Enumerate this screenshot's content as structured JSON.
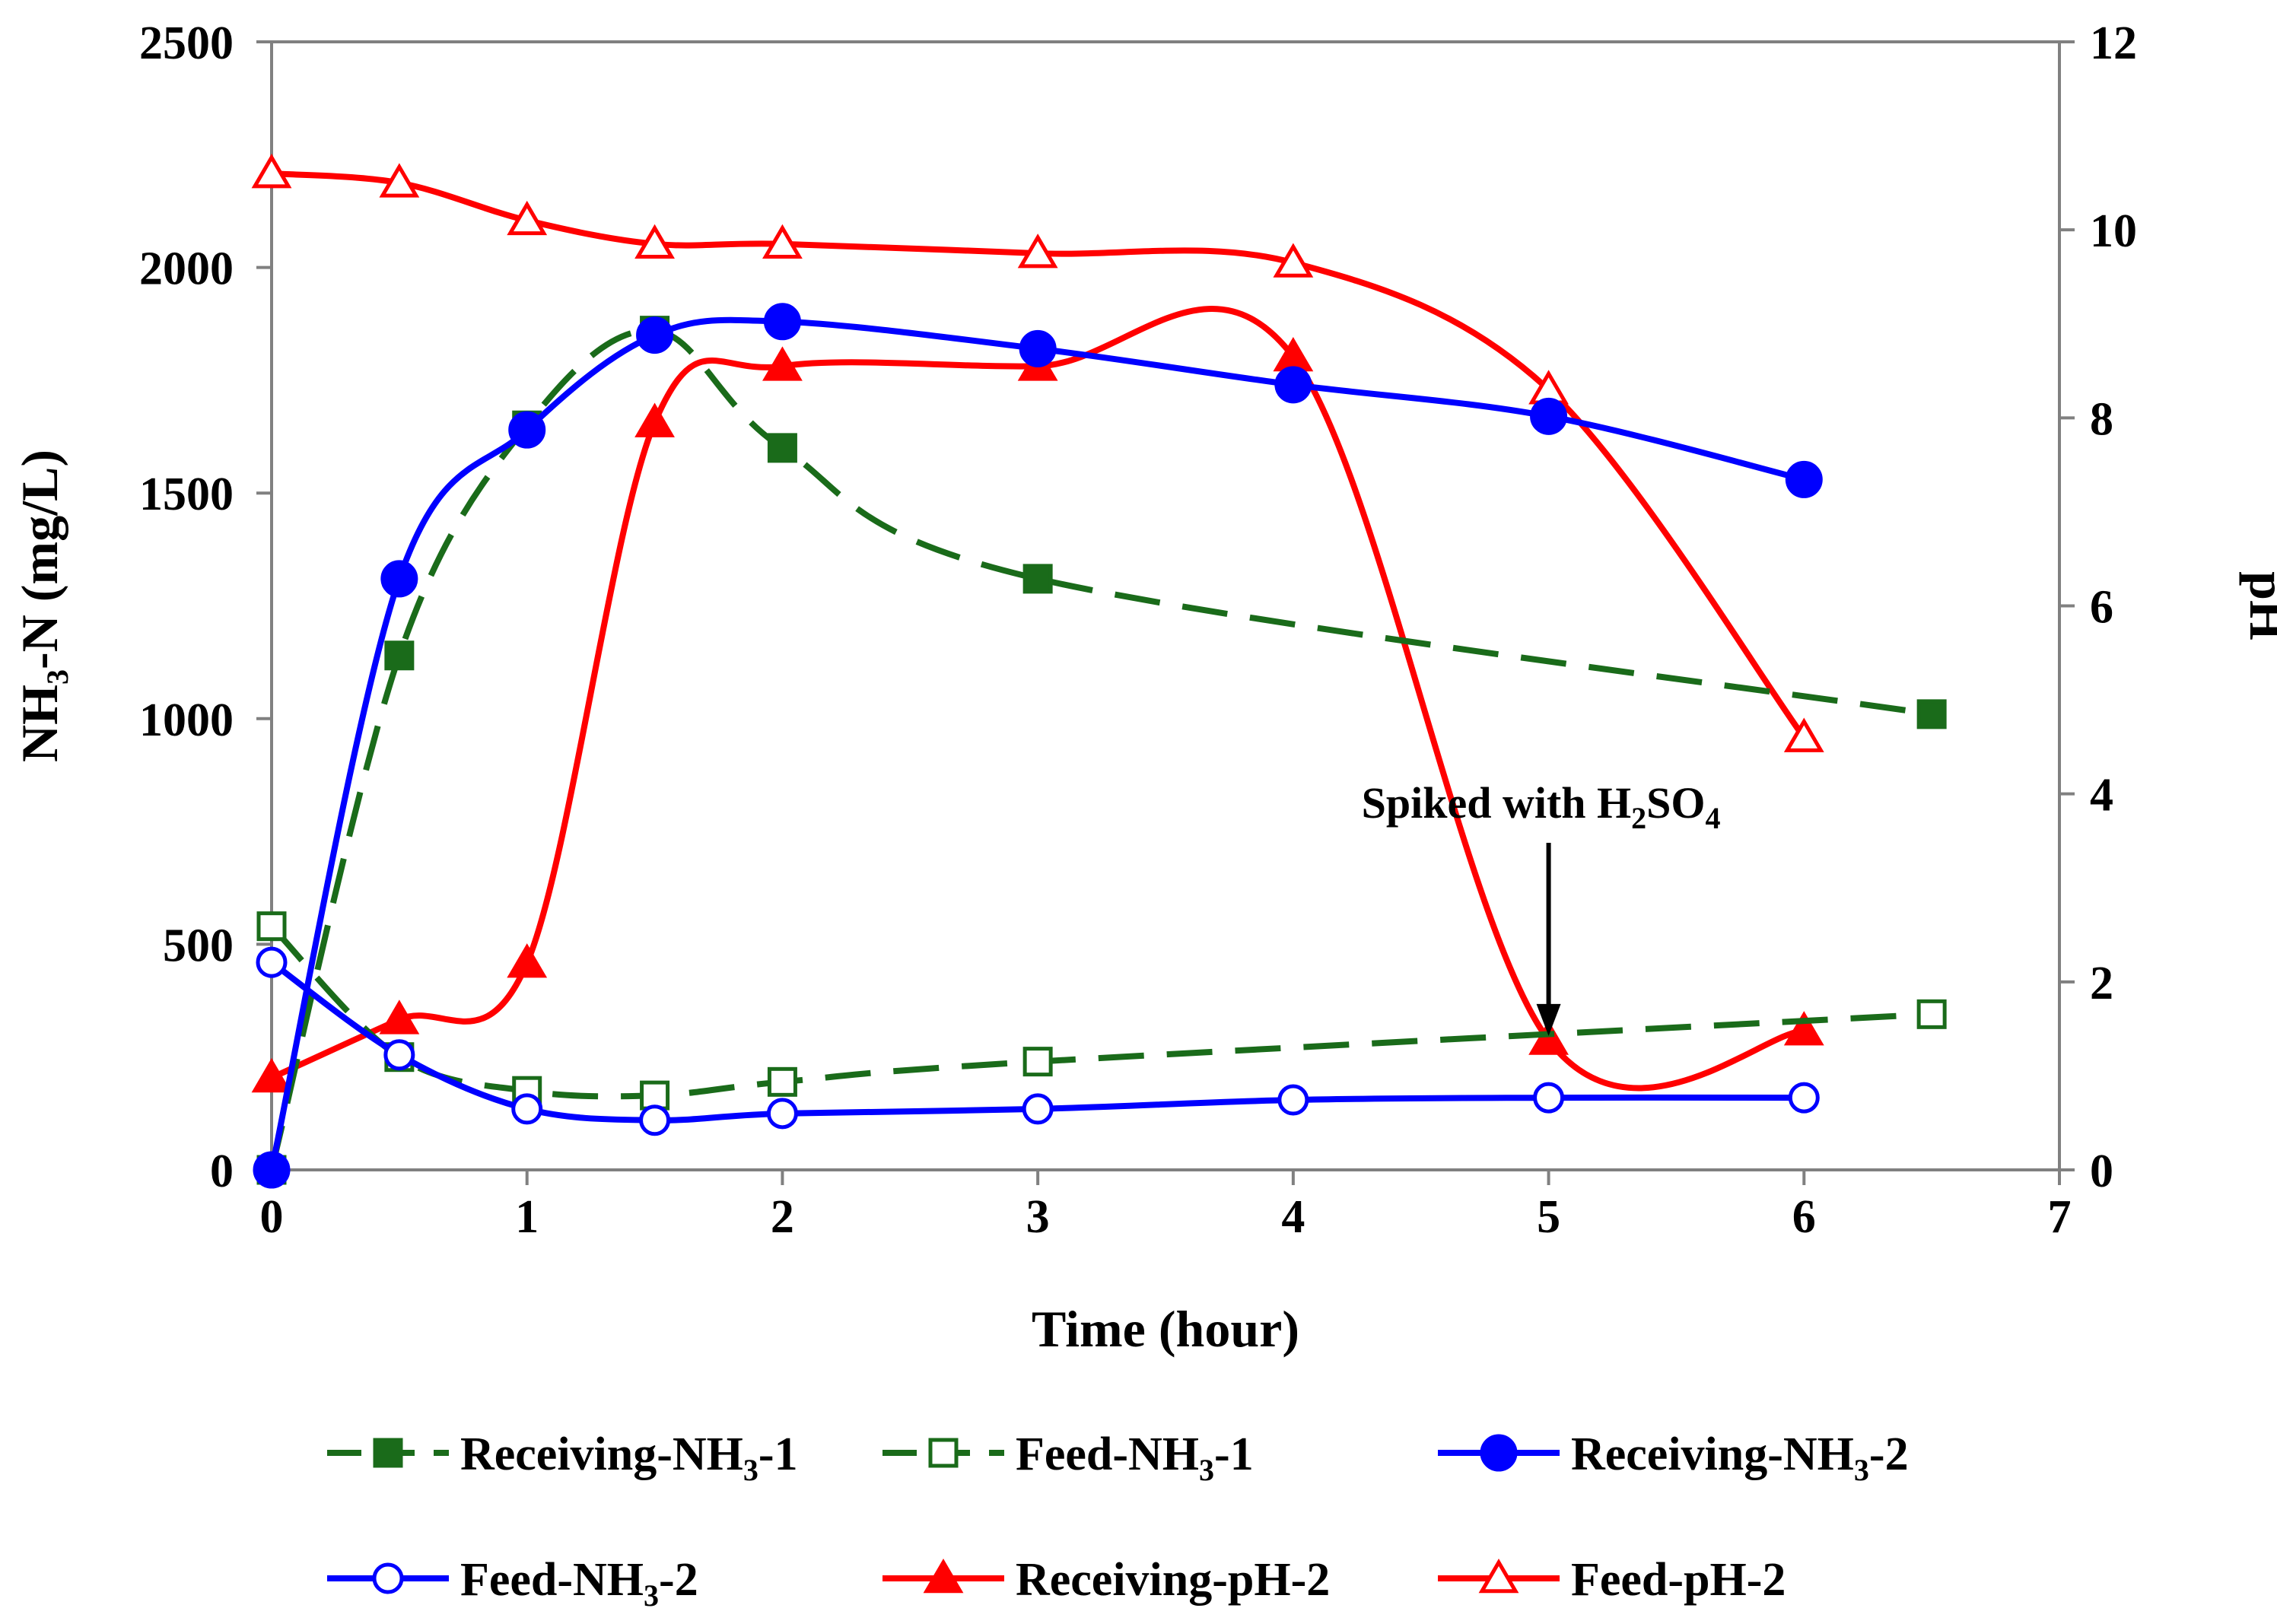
{
  "chart_data": {
    "type": "line",
    "xlabel": "Time (hour)",
    "ylabel_main": "NH",
    "ylabel_sub": "3",
    "ylabel_tail": "-N (mg/L)",
    "y2label": "pH",
    "xlim": [
      0,
      7
    ],
    "ylim": [
      0,
      2500
    ],
    "y2lim": [
      0,
      12
    ],
    "x_ticks": [
      0,
      1,
      2,
      3,
      4,
      5,
      6,
      7
    ],
    "y_ticks": [
      0,
      500,
      1000,
      1500,
      2000,
      2500
    ],
    "y2_ticks": [
      0,
      2,
      4,
      6,
      8,
      10,
      12
    ],
    "grid": false,
    "series": [
      {
        "name": "Receiving-NH3-1",
        "label_main": "Receiving-NH",
        "label_sub": "3",
        "label_tail": "-1",
        "color": "#1a6b1a",
        "axis": "left",
        "dash": "dashed",
        "marker": "square-filled",
        "x": [
          0,
          0.5,
          1,
          1.5,
          2,
          3,
          6.5
        ],
        "y": [
          0,
          1140,
          1650,
          1860,
          1600,
          1310,
          1010
        ]
      },
      {
        "name": "Feed-NH3-1",
        "label_main": "Feed-NH",
        "label_sub": "3",
        "label_tail": "-1",
        "color": "#1a6b1a",
        "axis": "left",
        "dash": "dashed",
        "marker": "square-open",
        "x": [
          0,
          0.5,
          1,
          1.5,
          2,
          3,
          6.5
        ],
        "y": [
          540,
          250,
          175,
          165,
          195,
          240,
          345
        ]
      },
      {
        "name": "Receiving-NH3-2",
        "label_main": "Receiving-NH",
        "label_sub": "3",
        "label_tail": "-2",
        "color": "#0000ff",
        "axis": "left",
        "dash": "solid",
        "marker": "circle-filled",
        "x": [
          0,
          0.5,
          1,
          1.5,
          2,
          3,
          4,
          5,
          6
        ],
        "y": [
          0,
          1310,
          1640,
          1850,
          1880,
          1820,
          1740,
          1670,
          1530
        ]
      },
      {
        "name": "Feed-NH3-2",
        "label_main": "Feed-NH",
        "label_sub": "3",
        "label_tail": "-2",
        "color": "#0000ff",
        "axis": "left",
        "dash": "solid",
        "marker": "circle-open",
        "x": [
          0,
          0.5,
          1,
          1.5,
          2,
          3,
          4,
          5,
          6
        ],
        "y": [
          460,
          255,
          135,
          110,
          125,
          135,
          155,
          160,
          160
        ]
      },
      {
        "name": "Receiving-pH-2",
        "label_main": "Receiving-pH-2",
        "label_sub": "",
        "label_tail": "",
        "color": "#ff0000",
        "axis": "right",
        "dash": "solid",
        "marker": "triangle-filled",
        "x": [
          0,
          0.5,
          1,
          1.5,
          2,
          3,
          4,
          5,
          6
        ],
        "y": [
          0.98,
          1.6,
          2.2,
          7.95,
          8.55,
          8.55,
          8.65,
          1.38,
          1.48
        ]
      },
      {
        "name": "Feed-pH-2",
        "label_main": "Feed-pH-2",
        "label_sub": "",
        "label_tail": "",
        "color": "#ff0000",
        "axis": "right",
        "dash": "solid",
        "marker": "triangle-open",
        "x": [
          0,
          0.5,
          1,
          1.5,
          2,
          3,
          4,
          5,
          6
        ],
        "y": [
          10.6,
          10.5,
          10.1,
          9.85,
          9.85,
          9.75,
          9.65,
          8.3,
          4.6
        ]
      }
    ],
    "annotation": {
      "text_main": "Spiked with H",
      "text_sub1": "2",
      "text_mid": "SO",
      "text_sub2": "4",
      "x": 5,
      "y": 280
    }
  }
}
